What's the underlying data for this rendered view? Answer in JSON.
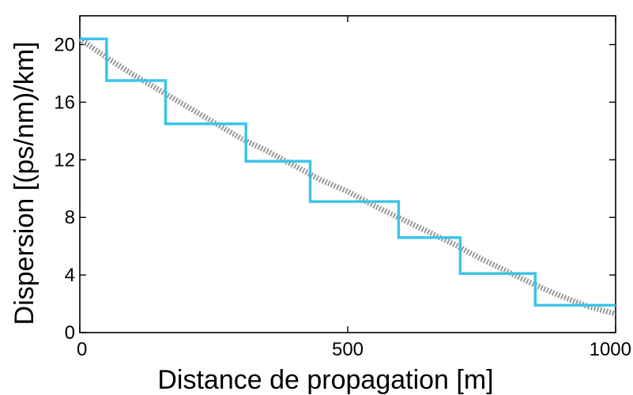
{
  "chart_data": {
    "type": "line",
    "xlabel": "Distance de propagation [m]",
    "ylabel": "Dispersion [(ps/nm)/km]",
    "xlim": [
      0,
      1000
    ],
    "ylim": [
      0,
      22
    ],
    "x_ticks": [
      0,
      500,
      1000
    ],
    "y_ticks": [
      0,
      4,
      8,
      12,
      16,
      20
    ],
    "grid": false,
    "legend": "none",
    "series": [
      {
        "style": "step",
        "color": "#3cc4ea",
        "x": [
          0,
          50,
          50,
          160,
          160,
          310,
          310,
          430,
          430,
          595,
          595,
          710,
          710,
          850,
          850,
          1000
        ],
        "y": [
          20.4,
          20.4,
          17.5,
          17.5,
          14.5,
          14.5,
          11.9,
          11.9,
          9.1,
          9.1,
          6.6,
          6.6,
          4.1,
          4.1,
          1.9,
          1.9
        ]
      },
      {
        "style": "dotted",
        "color": "#999999",
        "x": [
          0,
          50,
          100,
          150,
          200,
          250,
          300,
          350,
          400,
          450,
          500,
          550,
          600,
          650,
          700,
          750,
          800,
          850,
          900,
          950,
          1000
        ],
        "y": [
          20.4,
          19.1,
          17.9,
          16.8,
          15.7,
          14.6,
          13.5,
          12.6,
          11.6,
          10.6,
          9.8,
          8.8,
          7.9,
          7.0,
          6.1,
          5.1,
          4.2,
          3.3,
          2.5,
          1.8,
          1.3
        ]
      }
    ]
  }
}
